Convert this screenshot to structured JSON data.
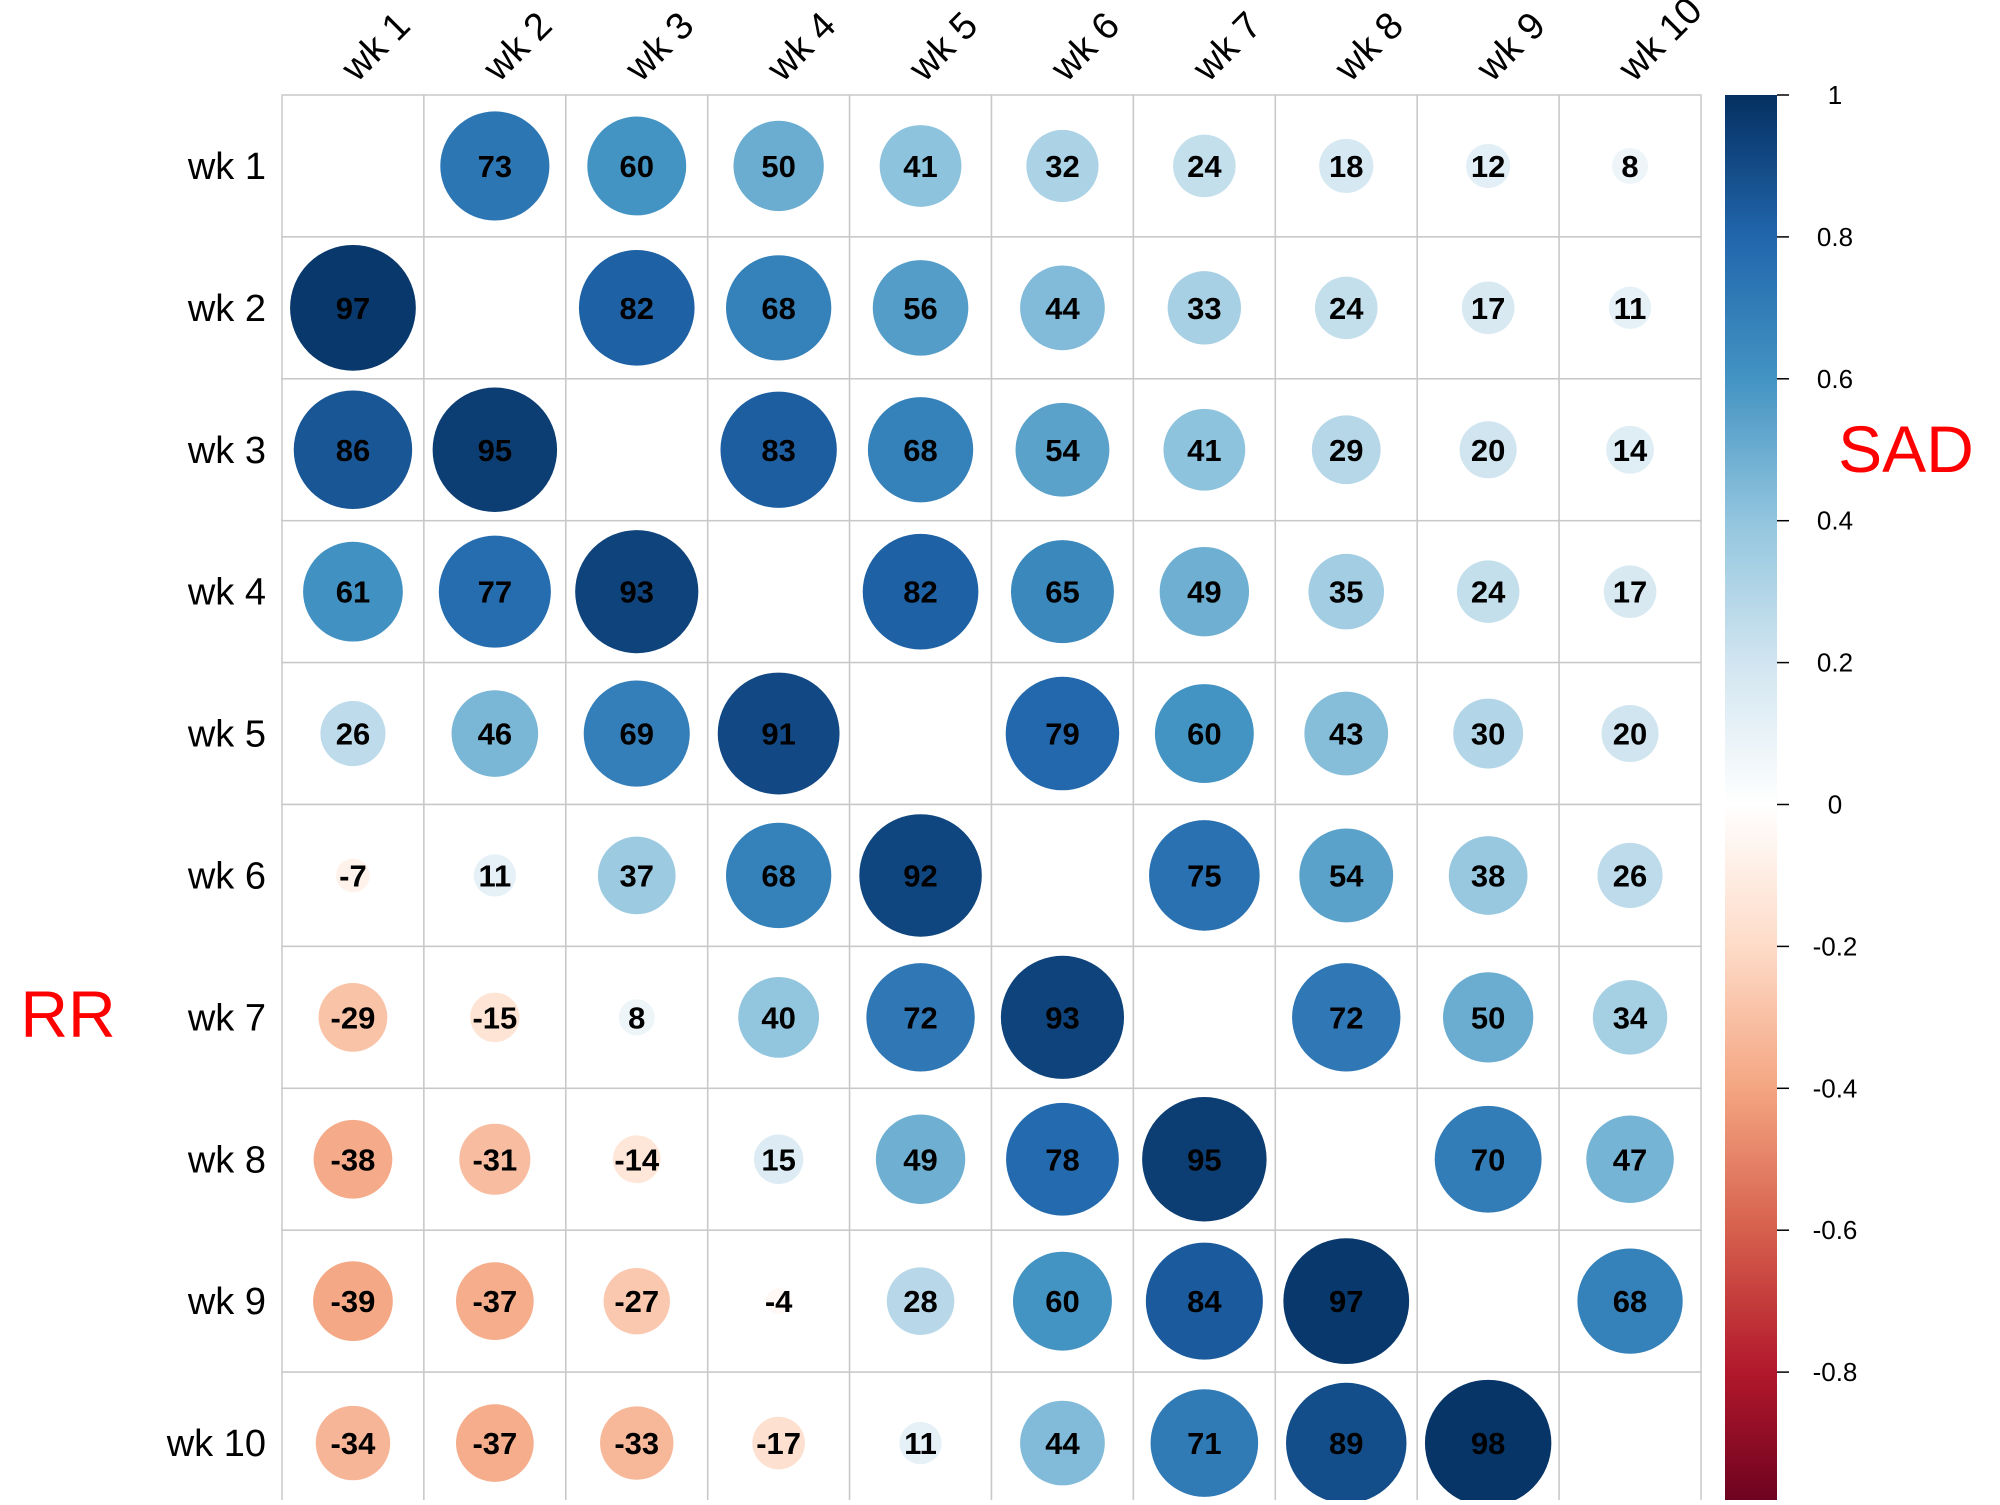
{
  "chart_data": {
    "type": "heatmap",
    "style": "corrplot-circle",
    "columns": [
      "wk 1",
      "wk 2",
      "wk 3",
      "wk 4",
      "wk 5",
      "wk 6",
      "wk 7",
      "wk 8",
      "wk 9",
      "wk 10"
    ],
    "rows": [
      "wk 1",
      "wk 2",
      "wk 3",
      "wk 4",
      "wk 5",
      "wk 6",
      "wk 7",
      "wk 8",
      "wk 9",
      "wk 10"
    ],
    "values": [
      [
        null,
        73,
        60,
        50,
        41,
        32,
        24,
        18,
        12,
        8
      ],
      [
        97,
        null,
        82,
        68,
        56,
        44,
        33,
        24,
        17,
        11
      ],
      [
        86,
        95,
        null,
        83,
        68,
        54,
        41,
        29,
        20,
        14
      ],
      [
        61,
        77,
        93,
        null,
        82,
        65,
        49,
        35,
        24,
        17
      ],
      [
        26,
        46,
        69,
        91,
        null,
        79,
        60,
        43,
        30,
        20
      ],
      [
        -7,
        11,
        37,
        68,
        92,
        null,
        75,
        54,
        38,
        26
      ],
      [
        -29,
        -15,
        8,
        40,
        72,
        93,
        null,
        72,
        50,
        34
      ],
      [
        -38,
        -31,
        -14,
        15,
        49,
        78,
        95,
        null,
        70,
        47
      ],
      [
        -39,
        -37,
        -27,
        -4,
        28,
        60,
        84,
        97,
        null,
        68
      ],
      [
        -34,
        -37,
        -33,
        -17,
        11,
        44,
        71,
        89,
        98,
        null
      ]
    ],
    "value_scale": 100,
    "lower_triangle_label": "RR",
    "upper_triangle_label": "SAD",
    "annotation_color": "#ff0000",
    "colorbar": {
      "range": [
        -1,
        1
      ],
      "ticks": [
        "1",
        "0.8",
        "0.6",
        "0.4",
        "0.2",
        "0",
        "-0.2",
        "-0.4",
        "-0.6",
        "-0.8",
        "-1"
      ],
      "colors": [
        "#67001f",
        "#b2182b",
        "#d6604d",
        "#f4a582",
        "#fddbc7",
        "#ffffff",
        "#d1e5f0",
        "#92c5de",
        "#4393c3",
        "#2166ac",
        "#053061"
      ]
    },
    "grid": true
  }
}
